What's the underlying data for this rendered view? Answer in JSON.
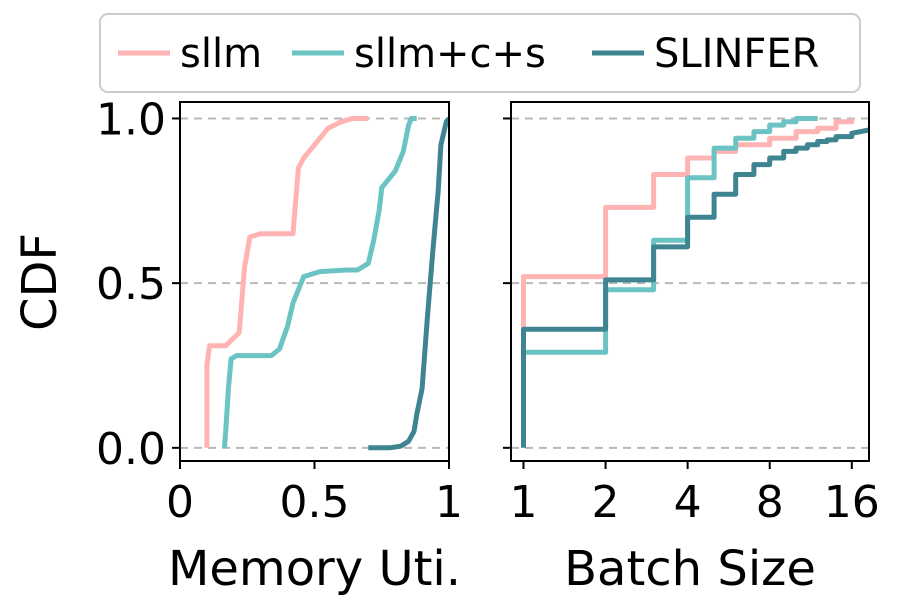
{
  "colors": {
    "sllm": "#ffb3b3",
    "sllm_c_s": "#6bc3c3",
    "slinfer": "#3e8591",
    "grid": "#b8b8b8",
    "axis": "#000000"
  },
  "legend": {
    "entries": [
      "sllm",
      "sllm+c+s",
      "SLINFER"
    ]
  },
  "shared_ylabel": "CDF",
  "chart_data": [
    {
      "type": "line",
      "name": "memory-utilization-cdf",
      "xlabel": "Memory Uti.",
      "ylabel": "CDF",
      "xlim": [
        0,
        1
      ],
      "ylim": [
        -0.04,
        1.05
      ],
      "xticks": [
        0,
        0.5,
        1
      ],
      "xticklabels": [
        "0",
        "0.5",
        "1"
      ],
      "yticks": [
        0,
        0.5,
        1
      ],
      "yticklabels": [
        "0.0",
        "0.5",
        "1.0"
      ],
      "grid": "y-dashed",
      "series": [
        {
          "name": "sllm",
          "x": [
            0.1,
            0.1,
            0.11,
            0.11,
            0.13,
            0.17,
            0.22,
            0.24,
            0.26,
            0.3,
            0.42,
            0.43,
            0.44,
            0.46,
            0.5,
            0.55,
            0.6,
            0.64,
            0.7
          ],
          "y": [
            0.0,
            0.25,
            0.31,
            0.31,
            0.31,
            0.31,
            0.35,
            0.55,
            0.64,
            0.65,
            0.65,
            0.75,
            0.85,
            0.88,
            0.92,
            0.97,
            0.99,
            1.0,
            1.0
          ]
        },
        {
          "name": "sllm+c+s",
          "x": [
            0.165,
            0.17,
            0.18,
            0.19,
            0.21,
            0.34,
            0.37,
            0.4,
            0.42,
            0.44,
            0.46,
            0.52,
            0.62,
            0.66,
            0.7,
            0.72,
            0.74,
            0.75,
            0.78,
            0.8,
            0.83,
            0.85,
            0.86,
            0.88
          ],
          "y": [
            0.0,
            0.05,
            0.18,
            0.27,
            0.28,
            0.28,
            0.3,
            0.37,
            0.44,
            0.48,
            0.52,
            0.535,
            0.54,
            0.54,
            0.56,
            0.63,
            0.72,
            0.79,
            0.82,
            0.84,
            0.9,
            0.98,
            1.0,
            1.0
          ]
        },
        {
          "name": "SLINFER",
          "x": [
            0.7,
            0.78,
            0.82,
            0.85,
            0.87,
            0.88,
            0.9,
            0.92,
            0.94,
            0.96,
            0.97,
            0.99,
            1.0
          ],
          "y": [
            0.0,
            0.0,
            0.005,
            0.02,
            0.05,
            0.1,
            0.18,
            0.4,
            0.6,
            0.78,
            0.92,
            0.99,
            1.0
          ]
        }
      ]
    },
    {
      "type": "line",
      "name": "batch-size-cdf",
      "xlabel": "Batch Size",
      "ylabel": "",
      "xscale": "log2",
      "xlim": [
        0.9,
        18.5
      ],
      "ylim": [
        -0.04,
        1.05
      ],
      "xticks": [
        1,
        2,
        4,
        8,
        16
      ],
      "xticklabels": [
        "1",
        "2",
        "4",
        "8",
        "16"
      ],
      "yticks": [
        0,
        0.5,
        1
      ],
      "yticklabels": [],
      "grid": "y-dashed",
      "series": [
        {
          "name": "sllm",
          "x": [
            1,
            1,
            2,
            2,
            3,
            3,
            4,
            4,
            5,
            5,
            6,
            6,
            8,
            8,
            10,
            10,
            12,
            12,
            14,
            14,
            16,
            16
          ],
          "y": [
            0.36,
            0.52,
            0.52,
            0.73,
            0.73,
            0.83,
            0.83,
            0.88,
            0.88,
            0.9,
            0.9,
            0.92,
            0.92,
            0.94,
            0.94,
            0.96,
            0.96,
            0.97,
            0.97,
            0.99,
            0.99,
            1.0
          ]
        },
        {
          "name": "sllm+c+s",
          "x": [
            1,
            1,
            2,
            2,
            3,
            3,
            4,
            4,
            5,
            5,
            6,
            6,
            7,
            7,
            8,
            8,
            9,
            9,
            10,
            10,
            12
          ],
          "y": [
            0.29,
            0.29,
            0.29,
            0.48,
            0.48,
            0.63,
            0.63,
            0.82,
            0.82,
            0.91,
            0.91,
            0.94,
            0.94,
            0.96,
            0.96,
            0.98,
            0.98,
            0.99,
            0.99,
            1.0,
            1.0
          ]
        },
        {
          "name": "SLINFER",
          "x": [
            1,
            1,
            2,
            2,
            3,
            3,
            4,
            4,
            5,
            5,
            6,
            6,
            7,
            7,
            8,
            8,
            9,
            9,
            10,
            10,
            11,
            11,
            12,
            12,
            13,
            13,
            14,
            14,
            16,
            16,
            18.5
          ],
          "y": [
            0.0,
            0.36,
            0.36,
            0.51,
            0.51,
            0.61,
            0.61,
            0.7,
            0.7,
            0.77,
            0.77,
            0.83,
            0.83,
            0.86,
            0.86,
            0.88,
            0.88,
            0.9,
            0.9,
            0.91,
            0.91,
            0.92,
            0.92,
            0.93,
            0.93,
            0.935,
            0.935,
            0.945,
            0.945,
            0.955,
            0.965
          ]
        }
      ]
    }
  ]
}
